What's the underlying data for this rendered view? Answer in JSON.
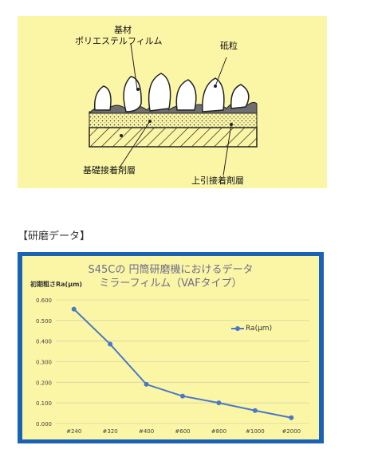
{
  "diagram": {
    "label_base": "基材",
    "label_film": "ポリエステルフィルム",
    "label_grain": "砥粒",
    "label_base_adhesive": "基礎接着剤層",
    "label_top_adhesive": "上引接着剤層",
    "colors": {
      "background": "#fbf6a6",
      "line": "#222222"
    }
  },
  "section_title": "【研磨データ】",
  "chart_data": {
    "type": "line",
    "title": "S45Cの 円筒研磨機におけるデータ",
    "subtitle": "ミラーフィルム（VAFタイプ）",
    "ylabel": "初期粗さRa(μm)",
    "xlabel": "",
    "categories": [
      "#240",
      "#320",
      "#400",
      "#600",
      "#800",
      "#1000",
      "#2000"
    ],
    "series": [
      {
        "name": "Ra(μm)",
        "values": [
          0.555,
          0.385,
          0.19,
          0.133,
          0.1,
          0.063,
          0.028
        ]
      }
    ],
    "ylim": [
      0,
      0.6
    ],
    "yticks": [
      "0.000",
      "0.100",
      "0.200",
      "0.300",
      "0.400",
      "0.500",
      "0.600"
    ],
    "grid": true,
    "legend_position": "right",
    "colors": {
      "line": "#4a78c8",
      "panel_border": "#1a63b4",
      "plot_bg": "#fbf6a6",
      "grid": "#d8d3a0"
    }
  }
}
